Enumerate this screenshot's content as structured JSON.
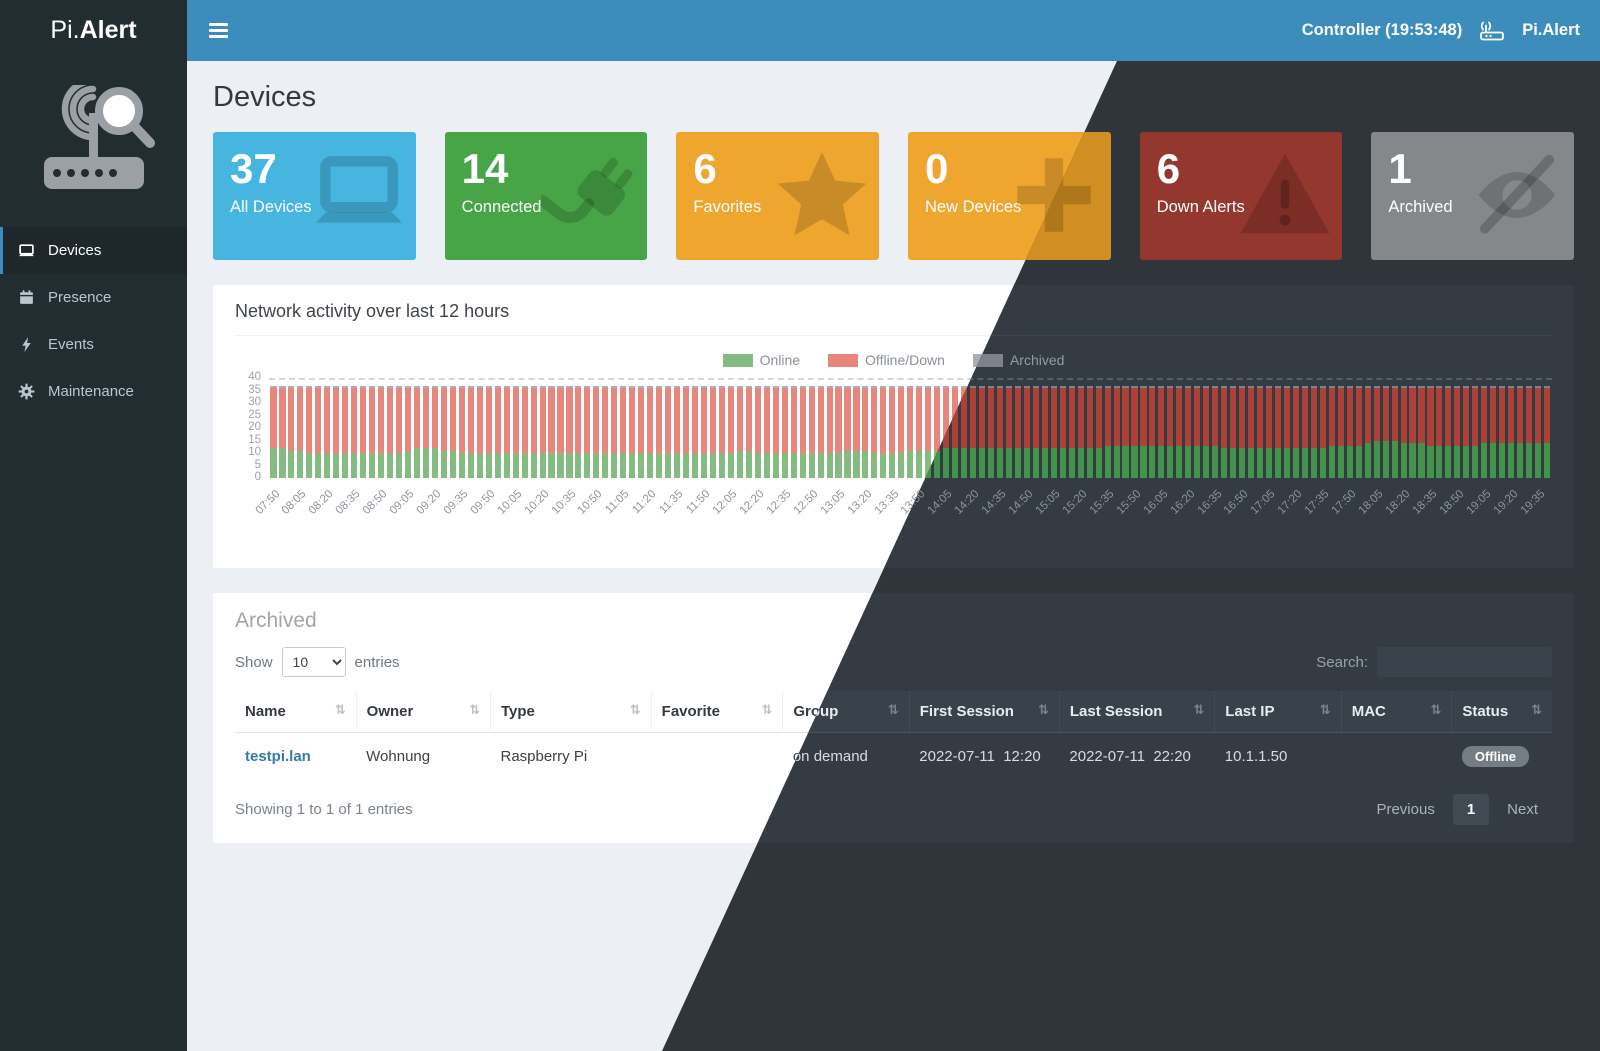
{
  "topbar": {
    "brand_pi": "Pi.",
    "brand_alert": "Alert",
    "controller_label": "Controller (19:53:48)",
    "app_name": "Pi.Alert"
  },
  "sidebar": {
    "items": [
      {
        "label": "Devices",
        "icon": "laptop-icon",
        "active": true
      },
      {
        "label": "Presence",
        "icon": "calendar-icon",
        "active": false
      },
      {
        "label": "Events",
        "icon": "bolt-icon",
        "active": false
      },
      {
        "label": "Maintenance",
        "icon": "gear-icon",
        "active": false
      }
    ]
  },
  "page": {
    "title": "Devices"
  },
  "infoboxes": [
    {
      "value": "37",
      "label": "All Devices",
      "color": "#46b5e0",
      "icon": "laptop-icon"
    },
    {
      "value": "14",
      "label": "Connected",
      "color": "#47a447",
      "icon": "plug-icon"
    },
    {
      "value": "6",
      "label": "Favorites",
      "color": "#efa62f",
      "icon": "star-icon"
    },
    {
      "value": "0",
      "label": "New Devices",
      "color": "#efa62f",
      "icon": "plus-icon"
    },
    {
      "value": "6",
      "label": "Down Alerts",
      "color": "#af4139",
      "icon": "warning-triangle-icon"
    },
    {
      "value": "1",
      "label": "Archived",
      "color": "#9d9d9d",
      "icon": "eye-slash-icon"
    }
  ],
  "chart_data": {
    "type": "stacked-bar",
    "title": "Network activity over last 12 hours",
    "x_start": "07:50",
    "x_end": "19:40",
    "x_interval_min": 5,
    "x_tick_every": 3,
    "y_axis": {
      "max": 40,
      "step": 5
    },
    "total_devices": 37,
    "archived_per_bar": 1,
    "legend": [
      {
        "label": "Online",
        "color": "#83bb80"
      },
      {
        "label": "Offline/Down",
        "color": "#e8867c"
      },
      {
        "label": "Archived",
        "color": "#a9afb5"
      }
    ],
    "online": [
      12,
      12,
      11,
      11,
      10,
      10,
      10,
      10,
      10,
      10,
      10,
      10,
      10,
      10,
      10,
      11,
      12,
      12,
      12,
      11,
      11,
      10,
      10,
      10,
      10,
      10,
      10,
      10,
      10,
      10,
      10,
      10,
      10,
      10,
      10,
      10,
      10,
      10,
      10,
      10,
      10,
      10,
      10,
      10,
      10,
      10,
      10,
      10,
      10,
      10,
      10,
      10,
      11,
      11,
      10,
      10,
      10,
      10,
      10,
      10,
      10,
      10,
      10,
      10,
      11,
      11,
      11,
      10,
      10,
      10,
      10,
      11,
      11,
      11,
      11,
      12,
      12,
      12,
      12,
      12,
      12,
      12,
      12,
      12,
      12,
      12,
      12,
      12,
      12,
      12,
      12,
      12,
      12,
      13,
      13,
      13,
      13,
      13,
      13,
      13,
      13,
      13,
      13,
      13,
      13,
      13,
      12,
      12,
      12,
      12,
      12,
      12,
      12,
      12,
      12,
      12,
      12,
      12,
      13,
      13,
      13,
      13,
      14,
      15,
      15,
      15,
      14,
      14,
      14,
      13,
      13,
      13,
      13,
      13,
      13,
      14,
      14,
      14,
      14,
      14,
      14,
      14,
      14
    ]
  },
  "table_panel": {
    "title": "Archived",
    "show_label": "Show",
    "page_size": "10",
    "entries_label": "entries",
    "search_label": "Search:",
    "search_value": "",
    "columns": [
      "Name",
      "Owner",
      "Type",
      "Favorite",
      "Group",
      "First Session",
      "Last Session",
      "Last IP",
      "MAC",
      "Status"
    ],
    "rows": [
      {
        "name": "testpi.lan",
        "owner": "Wohnung",
        "type": "Raspberry Pi",
        "favorite": "",
        "group": "on demand",
        "first_session": "2022-07-11  12:20",
        "last_session": "2022-07-11  22:20",
        "last_ip": "10.1.1.50",
        "mac": "",
        "status": "Offline"
      }
    ],
    "footer": "Showing 1 to 1 of 1 entries",
    "pagination": {
      "previous": "Previous",
      "current": "1",
      "next": "Next"
    }
  }
}
